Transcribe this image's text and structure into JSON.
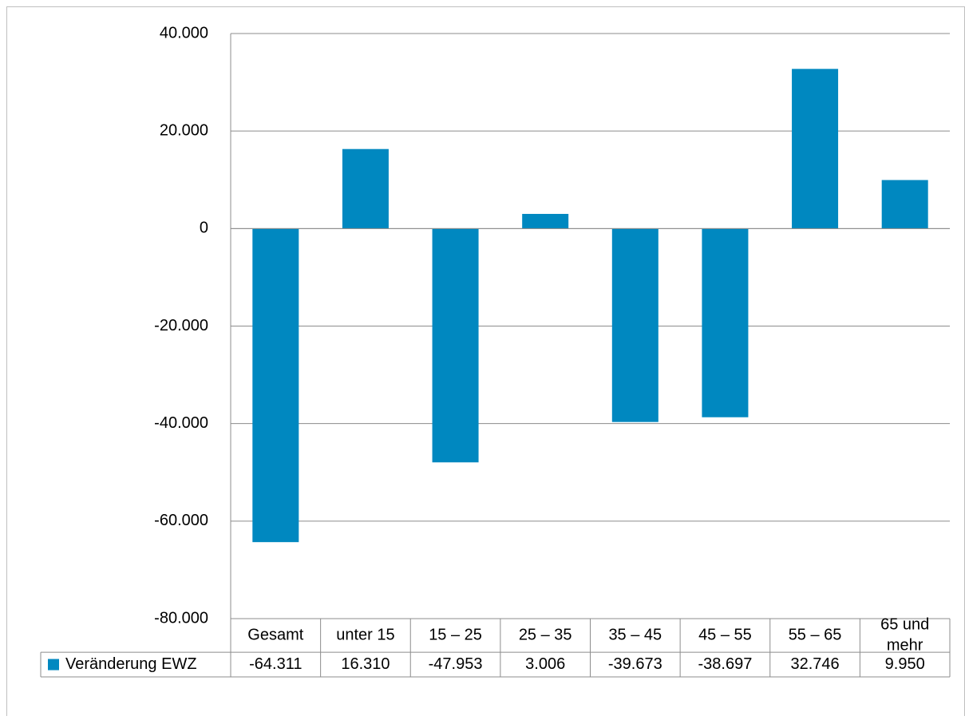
{
  "chart_data": {
    "type": "bar",
    "title": "",
    "xlabel": "",
    "ylabel": "",
    "categories": [
      "Gesamt",
      "unter 15",
      "15 – 25",
      "25 – 35",
      "35 – 45",
      "45 – 55",
      "55 – 65",
      "65 und mehr"
    ],
    "category_lines": [
      [
        "Gesamt"
      ],
      [
        "unter 15"
      ],
      [
        "15 – 25"
      ],
      [
        "25 – 35"
      ],
      [
        "35 – 45"
      ],
      [
        "45 – 55"
      ],
      [
        "55 – 65"
      ],
      [
        "65 und",
        "mehr"
      ]
    ],
    "series": [
      {
        "name": "Veränderung EWZ",
        "values": [
          -64311,
          16310,
          -47953,
          3006,
          -39673,
          -38697,
          32746,
          9950
        ],
        "labels": [
          "-64.311",
          "16.310",
          "-47.953",
          "3.006",
          "-39.673",
          "-38.697",
          "32.746",
          "9.950"
        ],
        "color": "#0088C0"
      }
    ],
    "ylim": [
      -80000,
      40000
    ],
    "yticks": [
      40000,
      20000,
      0,
      -20000,
      -40000,
      -60000,
      -80000
    ],
    "ytick_labels": [
      "40.000",
      "20.000",
      "0",
      "-20.000",
      "-40.000",
      "-60.000",
      "-80.000"
    ],
    "grid": true,
    "legend": "data-table-left",
    "data_table": true
  }
}
